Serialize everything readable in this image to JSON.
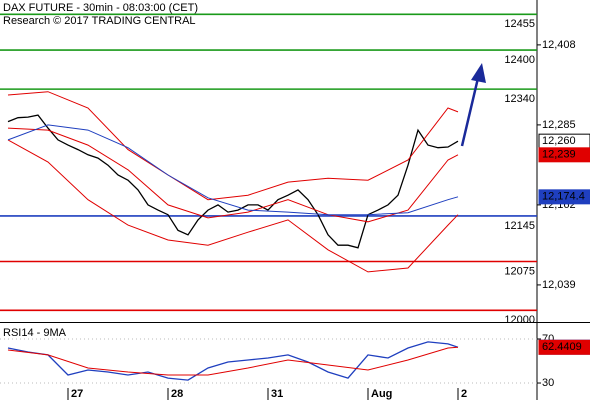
{
  "chart_data": [
    {
      "type": "line",
      "title": "DAX FUTURE - 30min - 08:03:00 (CET)",
      "subtitle": "Research © 2017 TRADING CENTRAL",
      "xlim": [
        -0.8,
        52.9
      ],
      "ylim": [
        11982,
        12477
      ],
      "yticks": [
        {
          "value": 12408,
          "label": "12,408"
        },
        {
          "value": 12285,
          "label": "12,285"
        },
        {
          "value": 12162,
          "label": "12,162"
        },
        {
          "value": 12039,
          "label": "12,039"
        }
      ],
      "levels": [
        {
          "value": 12455,
          "color": "#1a9a1a"
        },
        {
          "value": 12400,
          "color": "#1a9a1a"
        },
        {
          "value": 12340,
          "color": "#1a9a1a"
        },
        {
          "value": 12145,
          "color": "#1f3fbf"
        },
        {
          "value": 12075,
          "color": "#e00000"
        },
        {
          "value": 12000,
          "color": "#e00000"
        }
      ],
      "series": [
        {
          "color": "#000000",
          "x": [
            0,
            1,
            2,
            3,
            4,
            5,
            6,
            7,
            8,
            9,
            10,
            11,
            12,
            13,
            14,
            15,
            16,
            17,
            18,
            19,
            20,
            21,
            22,
            23,
            24,
            25,
            26,
            27,
            28,
            29,
            30,
            31,
            32,
            33,
            34,
            35,
            36,
            37,
            38,
            39,
            40,
            41,
            42,
            43,
            44,
            45
          ],
          "values": [
            12290,
            12296,
            12297,
            12300,
            12280,
            12262,
            12254,
            12247,
            12239,
            12234,
            12223,
            12208,
            12200,
            12185,
            12162,
            12154,
            12147,
            12123,
            12116,
            12139,
            12154,
            12162,
            12151,
            12154,
            12162,
            12162,
            12154,
            12170,
            12177,
            12185,
            12170,
            12147,
            12116,
            12100,
            12100,
            12096,
            12147,
            12154,
            12162,
            12177,
            12223,
            12277,
            12254,
            12250,
            12251,
            12260
          ]
        },
        {
          "color": "#e00000",
          "x": [
            0,
            4,
            8,
            12,
            16,
            20,
            24,
            28,
            32,
            36,
            40,
            44,
            45
          ],
          "values": [
            12331,
            12336,
            12311,
            12247,
            12208,
            12170,
            12177,
            12197,
            12203,
            12200,
            12231,
            12311,
            12305
          ]
        },
        {
          "color": "#e00000",
          "x": [
            0,
            4,
            8,
            12,
            16,
            20,
            24,
            28,
            32,
            36,
            40,
            44,
            45
          ],
          "values": [
            12280,
            12277,
            12254,
            12216,
            12162,
            12142,
            12151,
            12170,
            12147,
            12136,
            12154,
            12231,
            12239
          ]
        },
        {
          "color": "#e00000",
          "x": [
            0,
            4,
            8,
            12,
            16,
            20,
            24,
            28,
            32,
            36,
            40,
            44,
            45
          ],
          "values": [
            12262,
            12228,
            12170,
            12131,
            12108,
            12100,
            12120,
            12139,
            12093,
            12059,
            12065,
            12131,
            12147
          ]
        },
        {
          "color": "#1f3fbf",
          "x": [
            0,
            4,
            8,
            12,
            16,
            20,
            24,
            28,
            32,
            36,
            40,
            44,
            45
          ],
          "values": [
            12262,
            12285,
            12277,
            12250,
            12208,
            12173,
            12154,
            12151,
            12147,
            12147,
            12150,
            12170,
            12174.4
          ]
        }
      ],
      "markers": [
        {
          "value": 12260,
          "label": "12,260",
          "color": "#ffffff"
        },
        {
          "value": 12239,
          "label": "12,239",
          "color": "#e00000"
        },
        {
          "value": 12174.4,
          "label": "12,174.4",
          "color": "#1f3fbf"
        }
      ]
    },
    {
      "type": "line",
      "title": "RSI14 - 9MA",
      "xlim": [
        -0.8,
        52.9
      ],
      "xticks": [
        {
          "value": 6,
          "label": "27"
        },
        {
          "value": 16,
          "label": "28"
        },
        {
          "value": 26,
          "label": "31"
        },
        {
          "value": 36,
          "label": "Aug"
        },
        {
          "value": 45,
          "label": "2"
        }
      ],
      "ylim": [
        16.4,
        83.6
      ],
      "yticks": [
        70,
        30
      ],
      "series": [
        {
          "color": "#1f3fbf",
          "x": [
            0,
            2,
            4,
            6,
            8,
            10,
            12,
            14,
            16,
            18,
            20,
            22,
            24,
            26,
            28,
            30,
            32,
            34,
            36,
            38,
            40,
            42,
            44,
            45
          ],
          "values": [
            61.8,
            58.2,
            55.5,
            37.3,
            41.8,
            40,
            37.3,
            40,
            34.5,
            32.7,
            43.6,
            49.1,
            50.9,
            52.7,
            55.5,
            49.1,
            40,
            34.5,
            55.5,
            52.7,
            61.8,
            67.3,
            65.5,
            62.5421
          ]
        },
        {
          "color": "#e00000",
          "x": [
            0,
            4,
            8,
            12,
            16,
            20,
            24,
            28,
            32,
            36,
            40,
            44,
            45
          ],
          "values": [
            60,
            55.5,
            43.6,
            40,
            37.3,
            37.3,
            43.6,
            50.9,
            46.4,
            41.8,
            50.9,
            61.8,
            62.4409
          ]
        }
      ],
      "markers": [
        {
          "value": 62.5421,
          "color": "#1f3fbf"
        },
        {
          "value": 62.4409,
          "color": "#e00000"
        }
      ]
    }
  ]
}
